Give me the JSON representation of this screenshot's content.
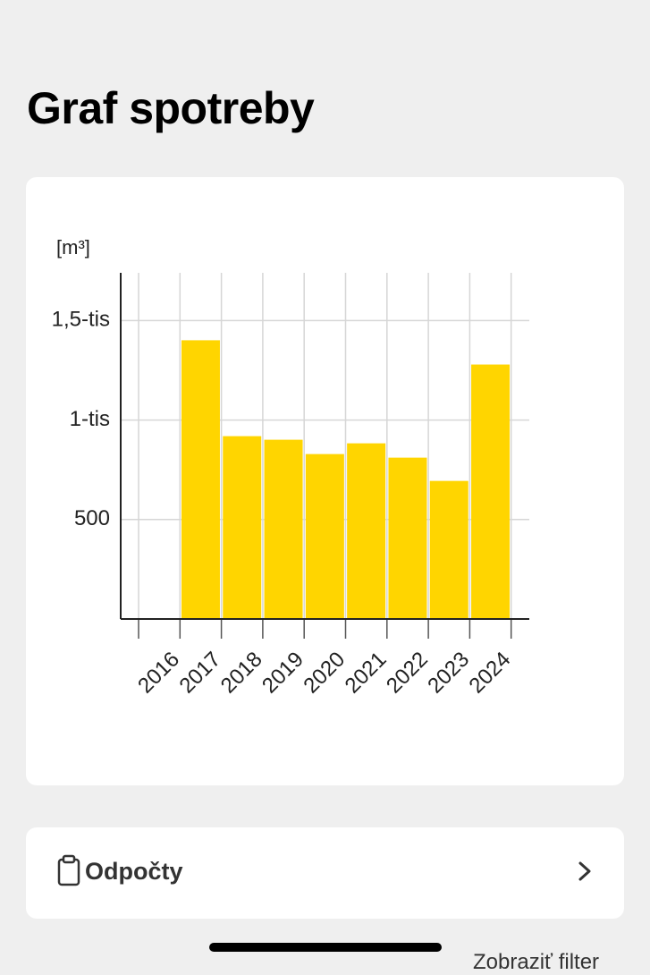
{
  "header": {
    "title": "Graf spotreby"
  },
  "chart_data": {
    "type": "bar",
    "y_label": "[m³]",
    "categories": [
      "2016",
      "2017",
      "2018",
      "2019",
      "2020",
      "2021",
      "2022",
      "2023",
      "2024"
    ],
    "values": [
      null,
      1401,
      919,
      901,
      829,
      883,
      811,
      694,
      1279
    ],
    "color": "#ffd500",
    "ylim": [
      0,
      1740
    ],
    "yticks": [
      500,
      {
        "value": 1000,
        "label": "1-tis"
      },
      {
        "value": 1500,
        "label": "1,5-tis"
      }
    ],
    "grid": true
  },
  "card": {
    "label": "Odpočty"
  },
  "footer": {
    "filter": "Zobraziť filter"
  }
}
